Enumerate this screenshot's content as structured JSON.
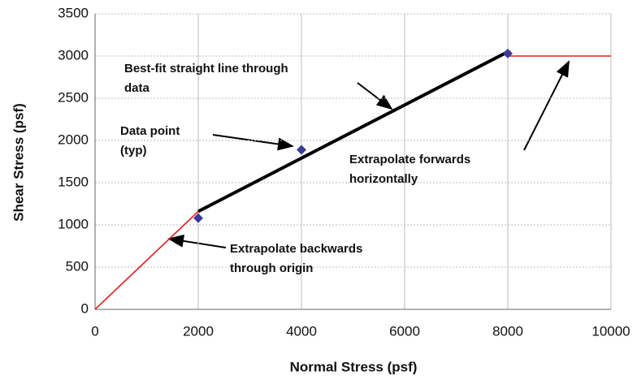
{
  "chart_data": {
    "type": "scatter",
    "x_label": "Normal Stress (psf)",
    "y_label": "Shear Stress (psf)",
    "xlim": [
      0,
      10000
    ],
    "ylim": [
      0,
      3500
    ],
    "xticks": [
      0,
      2000,
      4000,
      6000,
      8000,
      10000
    ],
    "yticks": [
      0,
      500,
      1000,
      1500,
      2000,
      2500,
      3000,
      3500
    ],
    "grid": true,
    "points": {
      "color": "#3a3a9a",
      "x": [
        2000,
        4000,
        8000
      ],
      "values": [
        1080,
        1890,
        3030
      ]
    },
    "lines": [
      {
        "color": "#000000",
        "x": [
          2000,
          8000
        ],
        "values": [
          1160,
          3050
        ]
      },
      {
        "color": "#e02020",
        "x": [
          0,
          2000
        ],
        "values": [
          0,
          1160
        ]
      },
      {
        "color": "#e02020",
        "x": [
          8000,
          10000
        ],
        "values": [
          3000,
          3000
        ]
      }
    ],
    "annotations": [
      {
        "lines": [
          "Best-fit straight line through",
          "data"
        ]
      },
      {
        "lines": [
          "Data point",
          "(typ)"
        ]
      },
      {
        "lines": [
          "Extrapolate forwards",
          "horizontally"
        ]
      },
      {
        "lines": [
          "Extrapolate backwards",
          "through origin"
        ]
      }
    ]
  }
}
